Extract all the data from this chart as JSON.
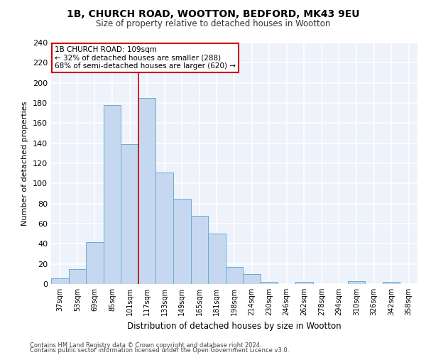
{
  "title_line1": "1B, CHURCH ROAD, WOOTTON, BEDFORD, MK43 9EU",
  "title_line2": "Size of property relative to detached houses in Wootton",
  "xlabel": "Distribution of detached houses by size in Wootton",
  "ylabel": "Number of detached properties",
  "categories": [
    "37sqm",
    "53sqm",
    "69sqm",
    "85sqm",
    "101sqm",
    "117sqm",
    "133sqm",
    "149sqm",
    "165sqm",
    "181sqm",
    "198sqm",
    "214sqm",
    "230sqm",
    "246sqm",
    "262sqm",
    "278sqm",
    "294sqm",
    "310sqm",
    "326sqm",
    "342sqm",
    "358sqm"
  ],
  "values": [
    6,
    15,
    42,
    178,
    139,
    185,
    111,
    85,
    68,
    50,
    17,
    10,
    2,
    0,
    2,
    0,
    0,
    3,
    0,
    2,
    0
  ],
  "bar_color": "#c5d8f0",
  "bar_edge_color": "#6aabd2",
  "subject_bar_index": 4,
  "annotation_title": "1B CHURCH ROAD: 109sqm",
  "annotation_line2": "← 32% of detached houses are smaller (288)",
  "annotation_line3": "68% of semi-detached houses are larger (620) →",
  "annotation_box_color": "#ffffff",
  "annotation_border_color": "#cc0000",
  "ylim": [
    0,
    240
  ],
  "yticks": [
    0,
    20,
    40,
    60,
    80,
    100,
    120,
    140,
    160,
    180,
    200,
    220,
    240
  ],
  "footer_line1": "Contains HM Land Registry data © Crown copyright and database right 2024.",
  "footer_line2": "Contains public sector information licensed under the Open Government Licence v3.0.",
  "bg_color": "#eef2fa",
  "grid_color": "#ffffff",
  "vline_color": "#cc0000"
}
